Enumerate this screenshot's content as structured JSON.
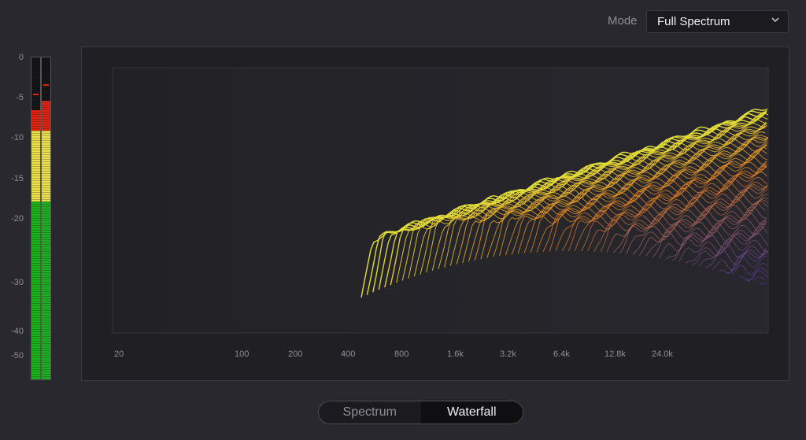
{
  "mode": {
    "label": "Mode",
    "value": "Full Spectrum"
  },
  "meter": {
    "scale": [
      "0",
      "-5",
      "-10",
      "-15",
      "-20",
      "-30",
      "-40",
      "-50"
    ],
    "left_level_db": -6.8,
    "right_level_db": -5.6,
    "left_peak_db": -4.6,
    "right_peak_db": -3.4,
    "colors": {
      "green": "#1fb21f",
      "yellow": "#ece04c",
      "red": "#dd2512"
    }
  },
  "spectrum": {
    "freq_labels": [
      "20",
      "100",
      "200",
      "400",
      "800",
      "1.6k",
      "3.2k",
      "6.4k",
      "12.8k",
      "24.0k"
    ],
    "colors": {
      "front": "#e3e23a",
      "mid": "#e8801e",
      "back": "#5b42c8"
    }
  },
  "view_toggle": {
    "options": [
      "Spectrum",
      "Waterfall"
    ],
    "selected": "Waterfall"
  }
}
